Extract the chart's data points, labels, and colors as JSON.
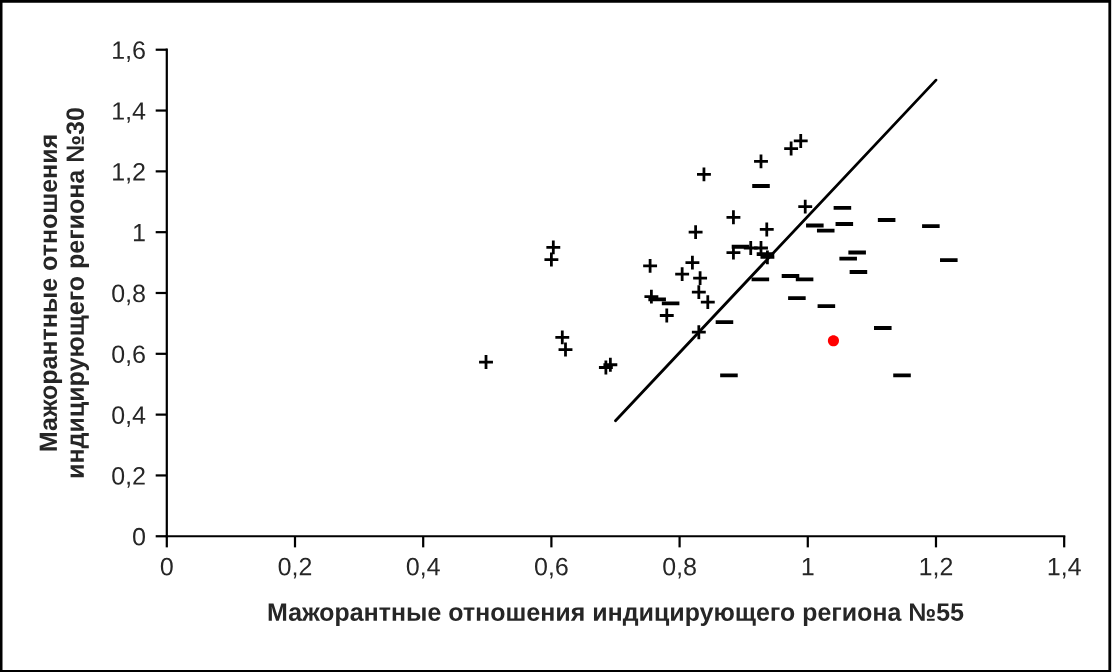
{
  "chart_data": {
    "type": "scatter",
    "xlabel": "Мажорантные отношения индицирующего региона №55",
    "ylabel": "Мажорантные отношения\nиндицирующего региона №30",
    "xlim": [
      0,
      1.4
    ],
    "xticks": [
      0,
      {
        "value": 0.2,
        "label": "0,2"
      },
      {
        "value": 0.4,
        "label": "0,4"
      },
      {
        "value": 0.6,
        "label": "0,6"
      },
      {
        "value": 0.8,
        "label": "0,8"
      },
      1,
      {
        "value": 1.2,
        "label": "1,2"
      },
      {
        "value": 1.4,
        "label": "1,4"
      }
    ],
    "ylim": [
      0,
      1.6
    ],
    "yticks": [
      0,
      {
        "value": 0.2,
        "label": "0,2"
      },
      {
        "value": 0.4,
        "label": "0,4"
      },
      {
        "value": 0.6,
        "label": "0,6"
      },
      {
        "value": 0.8,
        "label": "0,8"
      },
      1,
      {
        "value": 1.2,
        "label": "1,2"
      },
      {
        "value": 1.4,
        "label": "1,4"
      },
      {
        "value": 1.6,
        "label": "1,6"
      }
    ],
    "grid": false,
    "legend": false,
    "series": [
      {
        "marker": "cross",
        "color": "#000000",
        "x": [
          0.603,
          0.6,
          0.498,
          0.617,
          0.622,
          0.685,
          0.692,
          0.754,
          0.756,
          0.78,
          0.804,
          0.82,
          0.832,
          0.83,
          0.844,
          0.825,
          0.838,
          0.83,
          0.884,
          0.884,
          0.911,
          0.927,
          0.936,
          0.937,
          0.927,
          0.974,
          0.989,
          0.996
        ],
        "values": [
          0.95,
          0.91,
          0.573,
          0.654,
          0.614,
          0.555,
          0.564,
          0.889,
          0.788,
          0.726,
          0.862,
          0.9,
          0.849,
          0.803,
          0.77,
          1.0,
          1.19,
          0.671,
          1.049,
          0.933,
          0.948,
          0.948,
          1.009,
          0.917,
          1.233,
          1.275,
          1.3,
          1.084
        ]
      },
      {
        "color": "#000000",
        "x": [
          0.927,
          0.765,
          0.786,
          0.895,
          0.934,
          0.926,
          0.973,
          0.995,
          0.983,
          1.011,
          1.028,
          1.054,
          1.057,
          1.123,
          1.192,
          1.063,
          1.077,
          1.079,
          1.22,
          1.029,
          0.87,
          1.117,
          0.877,
          1.147
        ],
        "values": [
          1.152,
          0.779,
          0.766,
          0.952,
          0.928,
          0.845,
          0.856,
          0.845,
          0.783,
          1.022,
          1.005,
          1.08,
          1.027,
          1.04,
          1.02,
          0.913,
          0.933,
          0.869,
          0.908,
          0.757,
          0.704,
          0.685,
          0.529,
          0.529
        ]
      },
      {
        "marker": "circle",
        "color": "#ff0000",
        "x": [
          1.04
        ],
        "values": [
          0.643
        ]
      },
      {
        "type": "line",
        "marker": "none",
        "line_style": "solid",
        "color": "#000000",
        "x": [
          0.7,
          1.2
        ],
        "values": [
          0.38,
          1.5
        ]
      }
    ]
  }
}
